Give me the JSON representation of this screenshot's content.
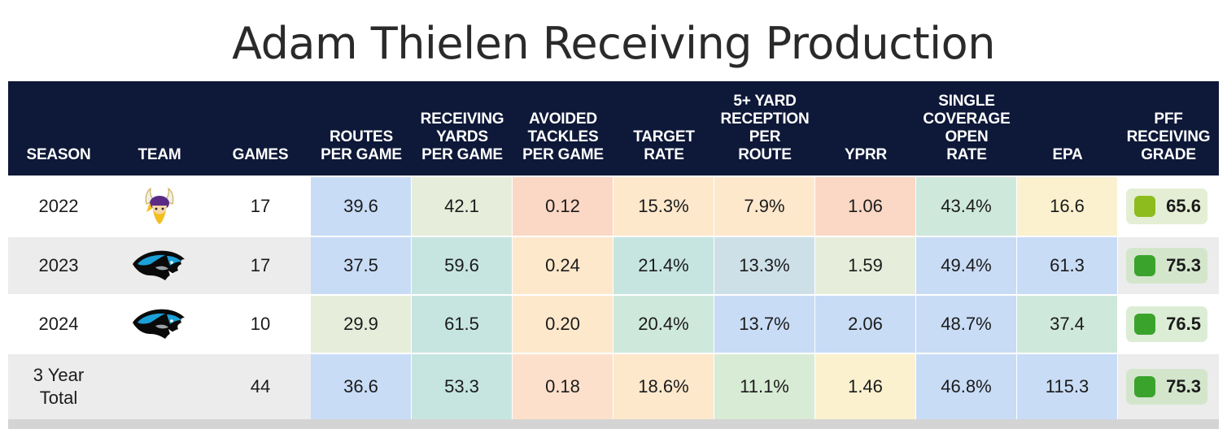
{
  "title": "Adam Thielen Receiving Production",
  "columns": [
    {
      "key": "season",
      "label": "SEASON"
    },
    {
      "key": "team",
      "label": "TEAM"
    },
    {
      "key": "games",
      "label": "GAMES"
    },
    {
      "key": "routes",
      "label": "ROUTES\nPER GAME"
    },
    {
      "key": "rec_yds",
      "label": "RECEIVING\nYARDS\nPER GAME"
    },
    {
      "key": "avoided",
      "label": "AVOIDED\nTACKLES\nPER GAME"
    },
    {
      "key": "target",
      "label": "TARGET\nRATE"
    },
    {
      "key": "fiveplus",
      "label": "5+ YARD\nRECEPTION\nPER\nROUTE"
    },
    {
      "key": "yprr",
      "label": "YPRR"
    },
    {
      "key": "single",
      "label": "SINGLE\nCOVERAGE\nOPEN\nRATE"
    },
    {
      "key": "epa",
      "label": "EPA"
    },
    {
      "key": "grade",
      "label": "PFF\nRECEIVING\nGRADE"
    }
  ],
  "rows": [
    {
      "season": "2022",
      "team_logo": "vikings-logo",
      "games": "17",
      "values": [
        "39.6",
        "42.1",
        "0.12",
        "15.3%",
        "7.9%",
        "1.06",
        "43.4%",
        "16.6"
      ],
      "colors": [
        "#c9dcf6",
        "#e6eedb",
        "#fbd7c5",
        "#fde8cc",
        "#fde8cc",
        "#fbd7c5",
        "#cfe8dc",
        "#fbf1cf"
      ],
      "grade": "65.6",
      "grade_box": "#e4eed4",
      "grade_sq": "#8cbc1e"
    },
    {
      "season": "2023",
      "team_logo": "panthers-logo",
      "games": "17",
      "values": [
        "37.5",
        "59.6",
        "0.24",
        "21.4%",
        "13.3%",
        "1.59",
        "49.4%",
        "61.3"
      ],
      "colors": [
        "#c9dcf6",
        "#c6e5e0",
        "#fde8cc",
        "#c6e5e0",
        "#cde0e8",
        "#e6eedb",
        "#c9dcf6",
        "#c9dcf6"
      ],
      "grade": "75.3",
      "grade_box": "#d3e6cc",
      "grade_sq": "#3aa32c"
    },
    {
      "season": "2024",
      "team_logo": "panthers-logo",
      "games": "10",
      "values": [
        "29.9",
        "61.5",
        "0.20",
        "20.4%",
        "13.7%",
        "2.06",
        "48.7%",
        "37.4"
      ],
      "colors": [
        "#e6eedb",
        "#c6e5e0",
        "#fde8cc",
        "#cfe8dc",
        "#c9dcf6",
        "#c9dcf6",
        "#c9dcf6",
        "#cfe8dc"
      ],
      "grade": "76.5",
      "grade_box": "#dcedd6",
      "grade_sq": "#3aa32c"
    },
    {
      "season": "3 Year\nTotal",
      "team_logo": "",
      "games": "44",
      "values": [
        "36.6",
        "53.3",
        "0.18",
        "18.6%",
        "11.1%",
        "1.46",
        "46.8%",
        "115.3"
      ],
      "colors": [
        "#c9dcf6",
        "#c6e5e0",
        "#fde0cc",
        "#fde8cc",
        "#d8ebd4",
        "#fbf1cf",
        "#c9dcf6",
        "#c9dcf6"
      ],
      "grade": "75.3",
      "grade_box": "#d3e6cc",
      "grade_sq": "#3aa32c"
    }
  ],
  "chart_data": {
    "type": "table",
    "title": "Adam Thielen Receiving Production",
    "columns": [
      "SEASON",
      "TEAM",
      "GAMES",
      "ROUTES PER GAME",
      "RECEIVING YARDS PER GAME",
      "AVOIDED TACKLES PER GAME",
      "TARGET RATE",
      "5+ YARD RECEPTION PER ROUTE",
      "YPRR",
      "SINGLE COVERAGE OPEN RATE",
      "EPA",
      "PFF RECEIVING GRADE"
    ],
    "rows": [
      [
        "2022",
        "",
        "17",
        "39.6",
        "42.1",
        "0.12",
        "15.3%",
        "7.9%",
        "1.06",
        "43.4%",
        "16.6",
        "65.6"
      ],
      [
        "2023",
        "",
        "17",
        "37.5",
        "59.6",
        "0.24",
        "21.4%",
        "13.3%",
        "1.59",
        "49.4%",
        "61.3",
        "75.3"
      ],
      [
        "2024",
        "",
        "10",
        "29.9",
        "61.5",
        "0.20",
        "20.4%",
        "13.7%",
        "2.06",
        "48.7%",
        "37.4",
        "76.5"
      ],
      [
        "3 Year Total",
        "",
        "44",
        "36.6",
        "53.3",
        "0.18",
        "18.6%",
        "11.1%",
        "1.46",
        "46.8%",
        "115.3",
        "75.3"
      ]
    ]
  }
}
